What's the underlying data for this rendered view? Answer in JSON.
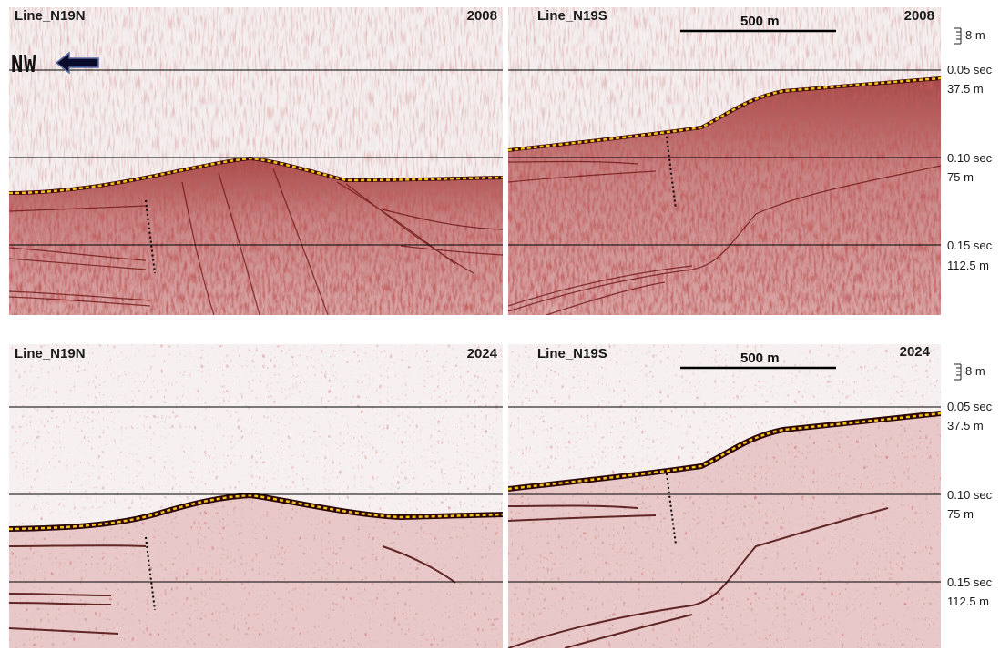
{
  "panels": [
    {
      "line": "Line_N19N",
      "year": "2008"
    },
    {
      "line": "Line_N19S",
      "year": "2008"
    },
    {
      "line": "Line_N19N",
      "year": "2024"
    },
    {
      "line": "Line_N19S",
      "year": "2024"
    }
  ],
  "direction_label": "NW",
  "scale_bar_label": "500 m",
  "vertical_scale_label": "8 m",
  "depth_markers": [
    {
      "time": "0.05 sec",
      "depth": "37.5 m"
    },
    {
      "time": "0.10 sec",
      "depth": "75 m"
    },
    {
      "time": "0.15 sec",
      "depth": "112.5 m"
    }
  ],
  "colors": {
    "seismic": "#8b1a1a",
    "seafloor_pick": "#f2c21a",
    "fault_trace": "#000000"
  }
}
